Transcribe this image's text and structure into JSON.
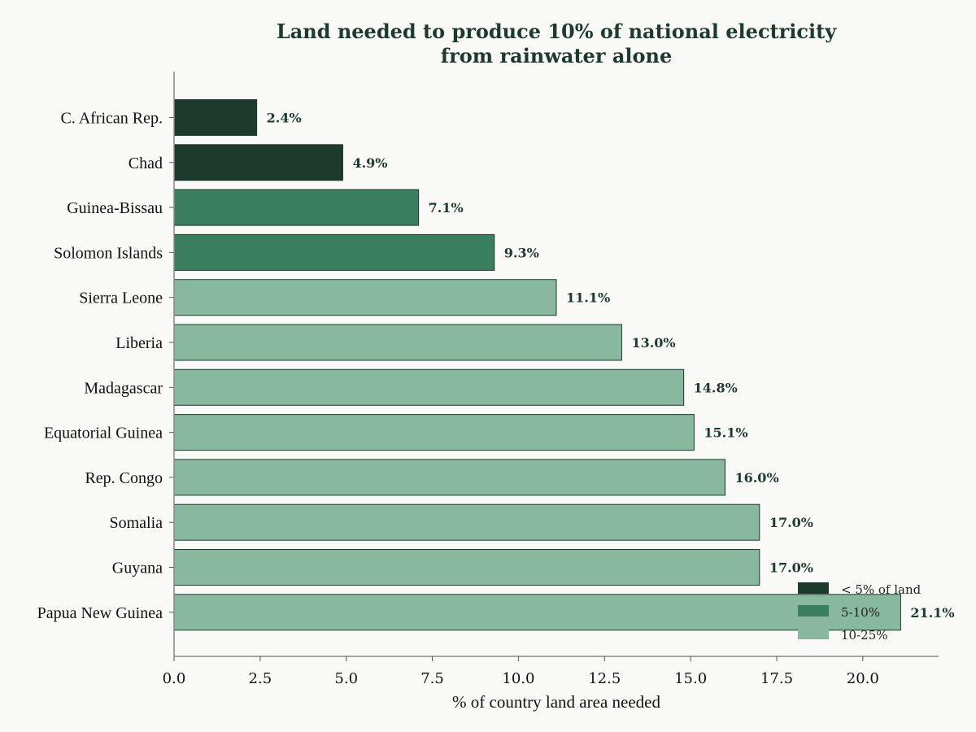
{
  "chart_data": {
    "type": "bar",
    "orientation": "horizontal",
    "title_line1": "Land needed to produce 10% of national electricity",
    "title_line2": "from rainwater alone",
    "xlabel": "% of country land area needed",
    "ylabel": "",
    "xlim": [
      0,
      22.2
    ],
    "x_ticks": [
      "0.0",
      "2.5",
      "5.0",
      "7.5",
      "10.0",
      "12.5",
      "15.0",
      "17.5",
      "20.0"
    ],
    "grid": false,
    "legend_placement": "bottom-right",
    "categories": [
      "C. African Rep.",
      "Chad",
      "Guinea-Bissau",
      "Solomon Islands",
      "Sierra Leone",
      "Liberia",
      "Madagascar",
      "Equatorial Guinea",
      "Rep. Congo",
      "Somalia",
      "Guyana",
      "Papua New Guinea"
    ],
    "values": [
      2.4,
      4.9,
      7.1,
      9.3,
      11.1,
      13.0,
      14.8,
      15.1,
      16.0,
      17.0,
      17.0,
      21.1
    ],
    "value_labels": [
      "2.4%",
      "4.9%",
      "7.1%",
      "9.3%",
      "11.1%",
      "13.0%",
      "14.8%",
      "15.1%",
      "16.0%",
      "17.0%",
      "17.0%",
      "21.1%"
    ],
    "groups": [
      0,
      0,
      1,
      1,
      2,
      2,
      2,
      2,
      2,
      2,
      2,
      2
    ],
    "legend": [
      {
        "label": "< 5% of land",
        "color": "#1d3a2e"
      },
      {
        "label": "5-10%",
        "color": "#387e5f"
      },
      {
        "label": "10-25%",
        "color": "#88b8a0"
      }
    ],
    "colors": {
      "text": "#1d3a2e",
      "axis": "#888888",
      "background": "#f9f9f7"
    }
  }
}
